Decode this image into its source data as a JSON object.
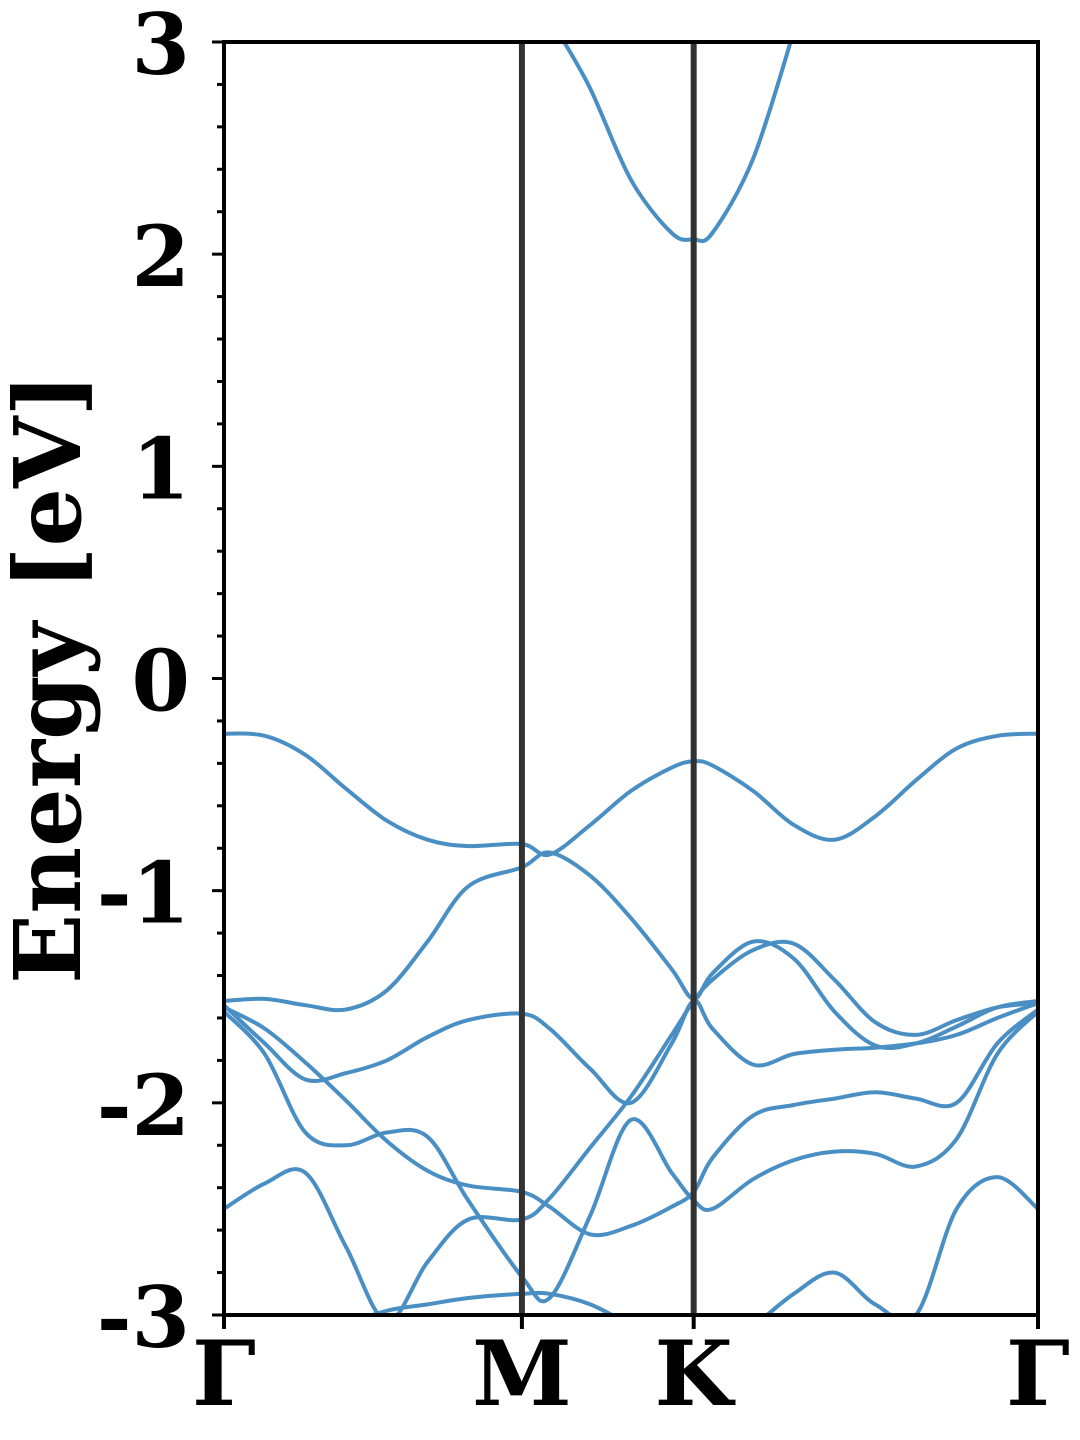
{
  "chart_data": {
    "type": "line",
    "title": "",
    "xlabel": "",
    "ylabel": "Energy [eV]",
    "ylim": [
      -3,
      3
    ],
    "yticks": [
      "3",
      "2",
      "1",
      "0",
      "-1",
      "-2",
      "-3"
    ],
    "ytick_values": [
      3,
      2,
      1,
      0,
      -1,
      -2,
      -3
    ],
    "minor_tick_step": 0.2,
    "xlim": [
      0,
      1
    ],
    "high_symmetry_points": [
      {
        "label": "Γ",
        "k": 0.0
      },
      {
        "label": "M",
        "k": 0.366
      },
      {
        "label": "K",
        "k": 0.577
      },
      {
        "label": "Γ",
        "k": 1.0
      }
    ],
    "grid": false,
    "colors": {
      "band": "#4a8fc4",
      "kpath_line": "#333333",
      "axis": "#000000"
    },
    "series": [
      {
        "x": [
          0.0,
          0.05,
          0.1,
          0.15,
          0.2,
          0.25,
          0.3,
          0.366,
          0.4,
          0.45,
          0.5,
          0.55,
          0.577,
          0.6,
          0.65,
          0.7,
          0.75,
          0.8,
          0.85,
          0.9,
          0.95,
          1.0
        ],
        "y": [
          -0.26,
          -0.27,
          -0.36,
          -0.52,
          -0.67,
          -0.76,
          -0.79,
          -0.78,
          -0.83,
          -0.69,
          -0.53,
          -0.42,
          -0.39,
          -0.41,
          -0.53,
          -0.69,
          -0.76,
          -0.65,
          -0.48,
          -0.33,
          -0.27,
          -0.26
        ]
      },
      {
        "x": [
          0.0,
          0.05,
          0.1,
          0.15,
          0.2,
          0.25,
          0.3,
          0.366,
          0.4,
          0.45,
          0.5,
          0.55,
          0.577,
          0.6,
          0.65,
          0.7,
          0.75,
          0.8,
          0.85,
          0.9,
          0.95,
          1.0
        ],
        "y": [
          -1.52,
          -1.51,
          -1.54,
          -1.56,
          -1.47,
          -1.24,
          -0.98,
          -0.89,
          -0.82,
          -0.93,
          -1.13,
          -1.37,
          -1.51,
          -1.39,
          -1.24,
          -1.32,
          -1.57,
          -1.73,
          -1.72,
          -1.64,
          -1.55,
          -1.52
        ]
      },
      {
        "x": [
          0.0,
          0.05,
          0.1,
          0.15,
          0.2,
          0.25,
          0.3,
          0.366,
          0.4,
          0.45,
          0.5,
          0.55,
          0.577,
          0.6,
          0.65,
          0.7,
          0.75,
          0.8,
          0.85,
          0.9,
          0.95,
          1.0
        ],
        "y": [
          -1.54,
          -1.72,
          -1.89,
          -1.86,
          -1.8,
          -1.69,
          -1.61,
          -1.58,
          -1.65,
          -1.84,
          -2.0,
          -1.72,
          -1.52,
          -1.65,
          -1.82,
          -1.77,
          -1.75,
          -1.74,
          -1.72,
          -1.68,
          -1.6,
          -1.53
        ]
      },
      {
        "x": [
          0.0,
          0.05,
          0.1,
          0.15,
          0.2,
          0.25,
          0.3,
          0.366,
          0.4,
          0.45,
          0.5,
          0.55,
          0.577,
          0.6,
          0.65,
          0.7,
          0.75,
          0.8,
          0.85,
          0.9,
          0.95,
          1.0
        ],
        "y": [
          -1.55,
          -1.65,
          -1.81,
          -1.99,
          -2.18,
          -2.32,
          -2.39,
          -2.42,
          -2.49,
          -2.62,
          -2.58,
          -2.49,
          -2.42,
          -2.26,
          -2.06,
          -2.01,
          -1.98,
          -1.95,
          -1.98,
          -2.0,
          -1.72,
          -1.56
        ]
      },
      {
        "x": [
          0.0,
          0.05,
          0.1,
          0.15,
          0.2,
          0.25,
          0.3,
          0.366,
          0.4,
          0.45,
          0.5,
          0.55,
          0.577,
          0.6,
          0.65,
          0.7,
          0.75,
          0.8,
          0.85,
          0.9,
          0.95,
          1.0
        ],
        "y": [
          -1.57,
          -1.77,
          -2.14,
          -2.2,
          -2.14,
          -2.16,
          -2.46,
          -2.82,
          -2.92,
          -2.53,
          -2.08,
          -2.33,
          -2.46,
          -2.5,
          -2.36,
          -2.27,
          -2.23,
          -2.24,
          -2.3,
          -2.17,
          -1.77,
          -1.57
        ]
      },
      {
        "x": [
          0.0,
          0.05,
          0.1,
          0.15,
          0.2,
          0.25,
          0.3,
          0.366,
          0.4,
          0.45,
          0.5,
          0.55,
          0.577,
          0.6,
          0.65,
          0.7,
          0.75,
          0.8,
          0.85,
          0.9,
          0.95,
          1.0
        ],
        "y": [
          -2.5,
          -2.38,
          -2.33,
          -2.68,
          -3.03,
          -2.75,
          -2.55,
          -2.55,
          -2.45,
          -2.21,
          -1.97,
          -1.68,
          -1.52,
          -1.42,
          -1.28,
          -1.25,
          -1.42,
          -1.62,
          -1.68,
          -1.61,
          -1.55,
          -1.53
        ]
      },
      {
        "x": [
          0.0,
          0.05,
          0.1,
          0.15,
          0.2,
          0.25,
          0.3,
          0.366,
          0.4,
          0.45,
          0.5,
          0.55,
          0.577,
          0.6,
          0.65,
          0.7,
          0.75,
          0.8,
          0.85,
          0.9,
          0.95,
          1.0
        ],
        "y": [
          -3.3,
          -3.2,
          -3.15,
          -3.05,
          -2.98,
          -2.95,
          -2.92,
          -2.9,
          -2.9,
          -2.95,
          -3.05,
          -3.15,
          -3.2,
          -3.15,
          -3.05,
          -2.9,
          -2.8,
          -2.95,
          -3.0,
          -2.5,
          -2.35,
          -2.5
        ]
      }
    ],
    "upper_band": {
      "x": [
        0.41,
        0.45,
        0.5,
        0.55,
        0.577,
        0.6,
        0.65,
        0.7
      ],
      "y": [
        3.05,
        2.78,
        2.35,
        2.1,
        2.07,
        2.1,
        2.45,
        3.05
      ]
    }
  }
}
